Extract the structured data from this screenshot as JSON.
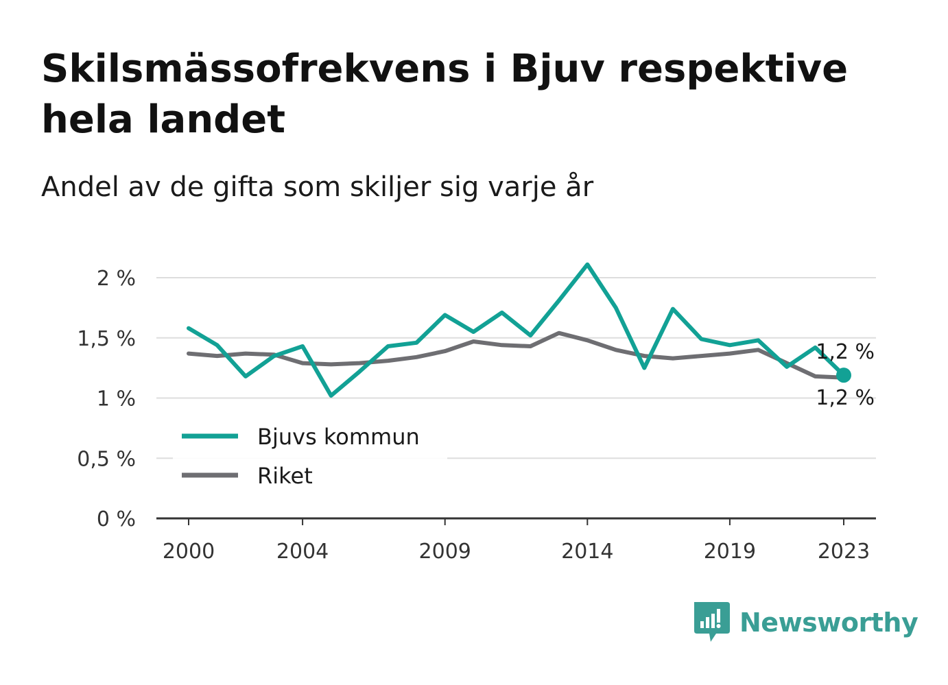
{
  "title": "Skilsmässofrekvens i Bjuv respektive hela landet",
  "subtitle": "Andel av de gifta som skiljer sig varje år",
  "brand": {
    "name": "Newsworthy",
    "icon": "bar-chart-speech-bubble-icon"
  },
  "colors": {
    "bjuv": "#12a195",
    "riket": "#6e6e72",
    "grid": "#dddddd",
    "axis": "#333333"
  },
  "chart_data": {
    "type": "line",
    "x": [
      2000,
      2001,
      2002,
      2003,
      2004,
      2005,
      2006,
      2007,
      2008,
      2009,
      2010,
      2011,
      2012,
      2013,
      2014,
      2015,
      2016,
      2017,
      2018,
      2019,
      2020,
      2021,
      2022,
      2023
    ],
    "series": [
      {
        "name": "Bjuvs kommun",
        "values": [
          1.58,
          1.44,
          1.18,
          1.35,
          1.43,
          1.02,
          1.22,
          1.43,
          1.46,
          1.69,
          1.55,
          1.71,
          1.52,
          1.81,
          2.11,
          1.75,
          1.25,
          1.74,
          1.49,
          1.44,
          1.48,
          1.26,
          1.42,
          1.19
        ]
      },
      {
        "name": "Riket",
        "values": [
          1.37,
          1.35,
          1.37,
          1.36,
          1.29,
          1.28,
          1.29,
          1.31,
          1.34,
          1.39,
          1.47,
          1.44,
          1.43,
          1.54,
          1.48,
          1.4,
          1.35,
          1.33,
          1.35,
          1.37,
          1.4,
          1.29,
          1.18,
          1.17
        ]
      }
    ],
    "x_ticks": [
      "2000",
      "2004",
      "2009",
      "2014",
      "2019",
      "2023"
    ],
    "y_ticks": [
      {
        "value": 0,
        "label": "0 %"
      },
      {
        "value": 0.5,
        "label": "0,5 %"
      },
      {
        "value": 1,
        "label": "1 %"
      },
      {
        "value": 1.5,
        "label": "1,5 %"
      },
      {
        "value": 2,
        "label": "2 %"
      }
    ],
    "ylim": [
      0,
      2.1
    ],
    "xlim": [
      2000,
      2023
    ],
    "grid": true,
    "legend_position": "bottom-left",
    "end_labels": [
      "1,2 %",
      "1,2 %"
    ]
  }
}
